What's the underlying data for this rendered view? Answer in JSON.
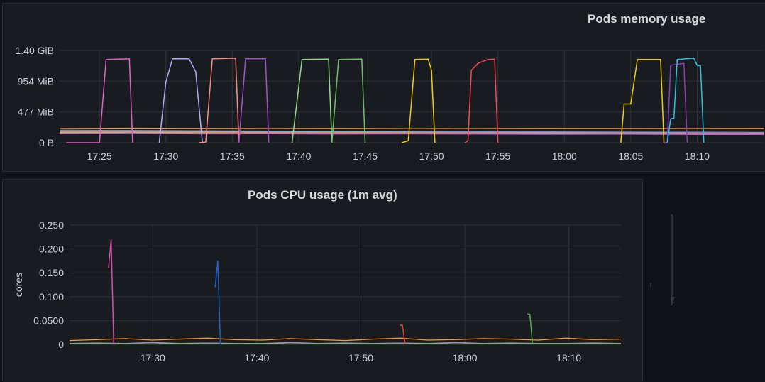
{
  "panels": {
    "memory": {
      "title": "Pods memory usage"
    },
    "cpu": {
      "title": "Pods CPU usage (1m avg)"
    }
  },
  "colors": {
    "background": "#111217",
    "panel": "#181b1f",
    "grid": "#2f3238",
    "text": "#c7d0d9"
  },
  "chart_data": [
    {
      "type": "line",
      "title": "Pods memory usage",
      "ylabel": "",
      "x_unit": "time",
      "x_range": [
        "17:22",
        "18:15"
      ],
      "xticks": [
        "17:25",
        "17:30",
        "17:35",
        "17:40",
        "17:45",
        "17:50",
        "17:55",
        "18:00",
        "18:05",
        "18:10"
      ],
      "yticks": [
        "0 B",
        "477 MiB",
        "954 MiB",
        "1.40 GiB"
      ],
      "ylim_mib": [
        0,
        1430
      ],
      "grid": true,
      "legend": "none",
      "baseline_series": [
        {
          "color": "#ff9830",
          "values_mib": [
            220,
            225,
            222,
            220,
            222,
            218,
            220,
            222,
            221,
            220,
            222
          ]
        },
        {
          "color": "#8ab8ff",
          "values_mib": [
            160,
            158,
            162,
            155,
            150,
            148,
            145,
            140,
            138,
            135,
            133
          ]
        },
        {
          "color": "#73bf69",
          "values_mib": [
            175,
            172,
            170,
            168,
            165,
            160,
            155,
            150,
            145,
            140,
            137
          ]
        },
        {
          "color": "#f2cc0c",
          "values_mib": [
            150,
            148,
            150,
            152,
            150,
            148,
            150,
            150,
            152,
            150,
            150
          ]
        },
        {
          "color": "#ff7383",
          "values_mib": [
            170,
            168,
            165,
            160,
            158,
            155,
            150,
            150,
            148,
            145,
            145
          ]
        },
        {
          "color": "#96d98d",
          "values_mib": [
            185,
            182,
            180,
            175,
            172,
            170,
            168,
            165,
            162,
            160,
            160
          ]
        },
        {
          "color": "#5794f2",
          "values_mib": [
            195,
            190,
            185,
            180,
            178,
            175,
            170,
            168,
            165,
            163,
            160
          ]
        },
        {
          "color": "#b877d9",
          "values_mib": [
            140,
            142,
            138,
            140,
            135,
            138,
            135,
            132,
            134,
            130,
            130
          ]
        }
      ],
      "bursts": [
        {
          "color": "#e05fc8",
          "points": [
            [
              "17:22:30",
              0
            ],
            [
              "17:25:00",
              0
            ],
            [
              "17:25:30",
              1290
            ],
            [
              "17:27:15",
              1300
            ],
            [
              "17:27:30",
              0
            ]
          ]
        },
        {
          "color": "#b7a8f5",
          "points": [
            [
              "17:29:30",
              0
            ],
            [
              "17:30:00",
              940
            ],
            [
              "17:30:30",
              1300
            ],
            [
              "17:31:45",
              1300
            ],
            [
              "17:32:15",
              1100
            ],
            [
              "17:32:45",
              0
            ]
          ]
        },
        {
          "color": "#ff8a85",
          "points": [
            [
              "17:32:30",
              0
            ],
            [
              "17:33:00",
              10
            ],
            [
              "17:33:30",
              1300
            ],
            [
              "17:35:15",
              1310
            ],
            [
              "17:35:30",
              0
            ]
          ]
        },
        {
          "color": "#a352cc",
          "points": [
            [
              "17:35:30",
              0
            ],
            [
              "17:36:00",
              1300
            ],
            [
              "17:37:30",
              1300
            ],
            [
              "17:37:45",
              0
            ]
          ]
        },
        {
          "color": "#96d98d",
          "points": [
            [
              "17:39:30",
              0
            ],
            [
              "17:40:15",
              1290
            ],
            [
              "17:42:15",
              1295
            ],
            [
              "17:42:30",
              0
            ]
          ]
        },
        {
          "color": "#73bf69",
          "points": [
            [
              "17:42:30",
              0
            ],
            [
              "17:43:00",
              1290
            ],
            [
              "17:44:45",
              1295
            ],
            [
              "17:45:00",
              0
            ]
          ]
        },
        {
          "color": "#f2cc0c",
          "points": [
            [
              "17:47:45",
              0
            ],
            [
              "17:48:15",
              30
            ],
            [
              "17:48:45",
              1290
            ],
            [
              "17:49:45",
              1295
            ],
            [
              "17:50:00",
              1120
            ],
            [
              "17:50:15",
              0
            ]
          ]
        },
        {
          "color": "#f2495c",
          "points": [
            [
              "17:52:30",
              0
            ],
            [
              "17:52:45",
              30
            ],
            [
              "17:53:00",
              1120
            ],
            [
              "17:53:30",
              1230
            ],
            [
              "17:54:15",
              1290
            ],
            [
              "17:54:45",
              1295
            ],
            [
              "17:55:00",
              0
            ]
          ]
        },
        {
          "color": "#f2cc0c",
          "points": [
            [
              "18:04:15",
              0
            ],
            [
              "18:04:30",
              600
            ],
            [
              "18:05:00",
              600
            ],
            [
              "18:05:30",
              1290
            ],
            [
              "18:07:15",
              1290
            ],
            [
              "18:07:30",
              0
            ]
          ]
        },
        {
          "color": "#8f3bb8",
          "points": [
            [
              "18:07:30",
              0
            ],
            [
              "18:07:45",
              0
            ],
            [
              "18:08:00",
              1200
            ],
            [
              "18:09:00",
              1230
            ],
            [
              "18:09:15",
              0
            ]
          ]
        },
        {
          "color": "#2ac2e6",
          "points": [
            [
              "18:07:45",
              0
            ],
            [
              "18:08:00",
              370
            ],
            [
              "18:08:15",
              380
            ],
            [
              "18:08:30",
              1290
            ],
            [
              "18:09:45",
              1310
            ],
            [
              "18:10:00",
              1200
            ],
            [
              "18:10:15",
              1190
            ],
            [
              "18:10:30",
              0
            ]
          ]
        }
      ]
    },
    {
      "type": "line",
      "title": "Pods CPU usage (1m avg)",
      "ylabel": "cores",
      "x_unit": "time",
      "x_range": [
        "17:22",
        "18:15"
      ],
      "xticks": [
        "17:30",
        "17:40",
        "17:50",
        "18:00",
        "18:10"
      ],
      "yticks": [
        "0",
        "0.0500",
        "0.100",
        "0.150",
        "0.200",
        "0.250"
      ],
      "ylim": [
        0,
        0.25
      ],
      "grid": true,
      "legend": "none",
      "baseline_series": [
        {
          "color": "#ff9830",
          "values": [
            0.008,
            0.01,
            0.012,
            0.009,
            0.011,
            0.013,
            0.01,
            0.009,
            0.012,
            0.01,
            0.008,
            0.011,
            0.013,
            0.009,
            0.01,
            0.012,
            0.011,
            0.009,
            0.013,
            0.01,
            0.011
          ]
        },
        {
          "color": "#b877d9",
          "values": [
            0.002,
            0.003,
            0.002,
            0.004,
            0.002,
            0.003,
            0.002,
            0.002,
            0.004,
            0.002,
            0.003,
            0.002,
            0.003,
            0.002,
            0.004,
            0.002,
            0.003,
            0.002,
            0.002,
            0.003,
            0.002
          ]
        },
        {
          "color": "#73bf69",
          "values": [
            0.001,
            0.002,
            0.001,
            0.001,
            0.002,
            0.001,
            0.001,
            0.002,
            0.001,
            0.001,
            0.002,
            0.001,
            0.001,
            0.002,
            0.001,
            0.001,
            0.002,
            0.001,
            0.001,
            0.002,
            0.001
          ]
        }
      ],
      "spikes": [
        {
          "color": "#d44faf",
          "points": [
            [
              "17:25:45",
              0.16
            ],
            [
              "17:26:00",
              0.22
            ],
            [
              "17:26:15",
              0.0
            ]
          ]
        },
        {
          "color": "#1f60c4",
          "points": [
            [
              "17:36:00",
              0.12
            ],
            [
              "17:36:15",
              0.175
            ],
            [
              "17:36:30",
              0.0
            ]
          ]
        },
        {
          "color": "#e0452f",
          "points": [
            [
              "17:53:45",
              0.04
            ],
            [
              "17:54:00",
              0.04
            ],
            [
              "17:54:15",
              0.0
            ]
          ]
        },
        {
          "color": "#56a64b",
          "points": [
            [
              "18:06:00",
              0.064
            ],
            [
              "18:06:15",
              0.063
            ],
            [
              "18:06:30",
              0.0
            ]
          ]
        }
      ]
    }
  ]
}
